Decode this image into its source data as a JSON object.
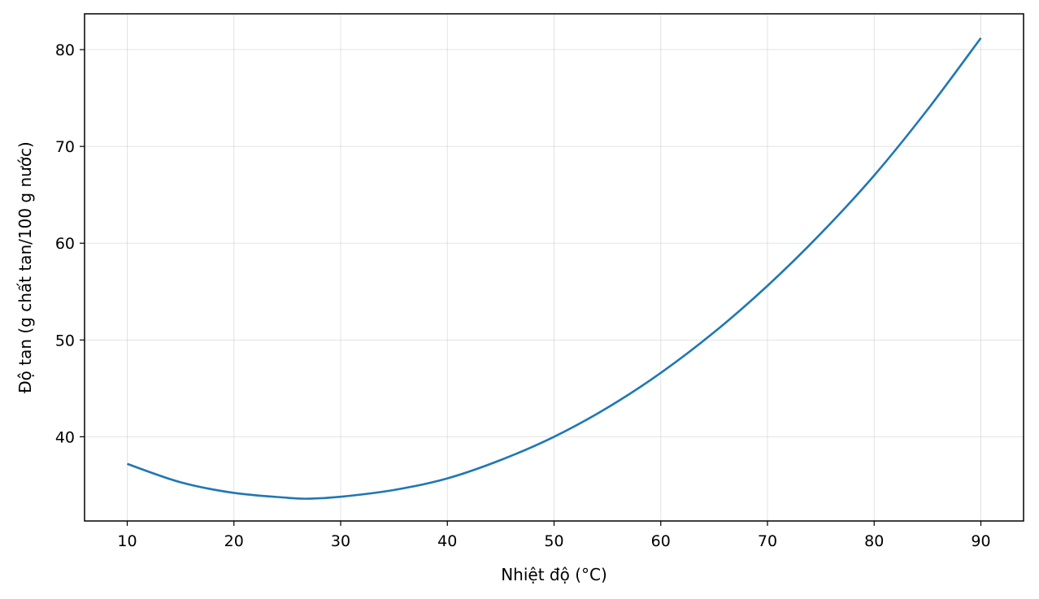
{
  "chart_data": {
    "type": "line",
    "xlabel": "Nhiệt độ (°C)",
    "ylabel": "Độ tan (g chất tan/100 g nước)",
    "xlim": [
      6,
      94
    ],
    "ylim": [
      31.3,
      83.7
    ],
    "x_ticks": [
      10,
      20,
      30,
      40,
      50,
      60,
      70,
      80,
      90
    ],
    "y_ticks": [
      40,
      50,
      60,
      70,
      80
    ],
    "grid": true,
    "line_color": "#1f77b4",
    "series": [
      {
        "x": [
          10,
          15,
          20,
          25,
          27,
          30,
          35,
          40,
          45,
          50,
          55,
          60,
          65,
          70,
          75,
          80,
          85,
          90
        ],
        "y": [
          37.2,
          35.3,
          34.2,
          33.7,
          33.6,
          33.8,
          34.5,
          35.7,
          37.6,
          40.0,
          43.0,
          46.6,
          50.8,
          55.6,
          61.0,
          67.0,
          73.8,
          81.2
        ]
      }
    ]
  }
}
